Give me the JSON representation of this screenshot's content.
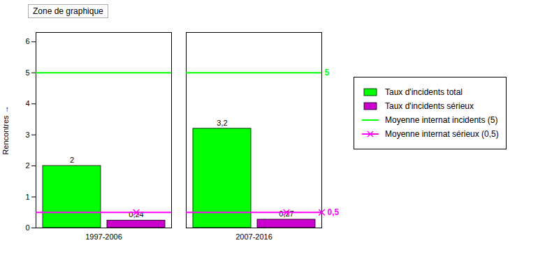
{
  "chart_data": {
    "type": "bar",
    "annotations": [
      "Zone de graphique"
    ],
    "categories": [
      "1997-2006",
      "2007-2016"
    ],
    "series": [
      {
        "name": "Taux d'incidents total",
        "color": "#00ff00",
        "values": [
          2.0,
          3.2
        ],
        "value_labels": [
          "2",
          "3,2"
        ]
      },
      {
        "name": "Taux d'incidents sérieux",
        "color": "#cc00cc",
        "values": [
          0.24,
          0.27
        ],
        "value_labels": [
          "0,24",
          "0,27"
        ]
      }
    ],
    "reference_lines": [
      {
        "name": "Moyenne internat incidents (5)",
        "value": 5.0,
        "label": "5",
        "color": "#00ff00"
      },
      {
        "name": "Moyenne internat sérieux (0,5)",
        "value": 0.5,
        "label": "0,5",
        "color": "#ff00ff",
        "marker": "x"
      }
    ],
    "ylabel": "Rencontres",
    "ylim": [
      0,
      6.3
    ],
    "yticks": [
      0,
      1,
      2,
      3,
      4,
      5,
      6
    ],
    "data_labels": true,
    "legend": "right"
  }
}
